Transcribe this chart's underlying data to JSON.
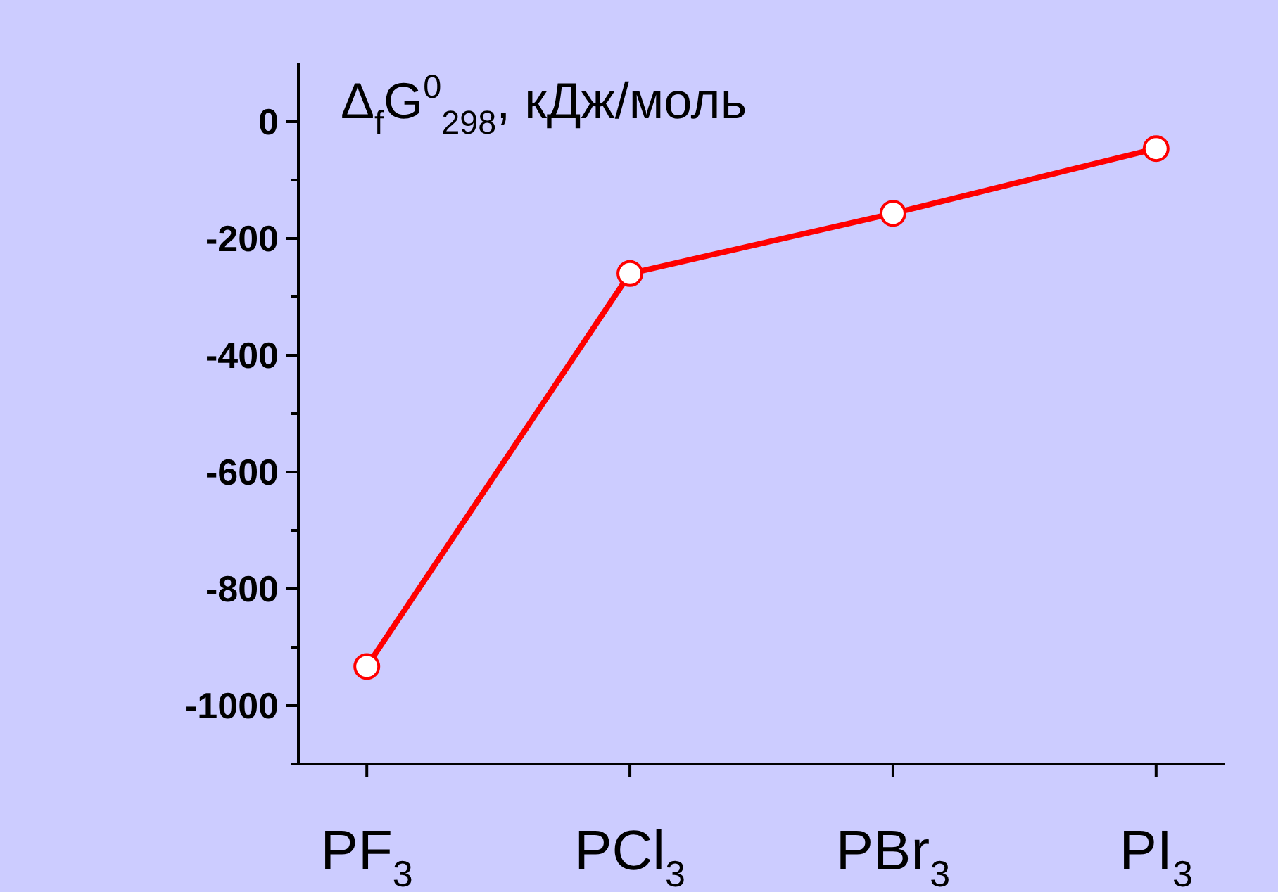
{
  "chart_data": {
    "type": "line",
    "ylabel": "Δ$_{f}$G$^{0}$$_{298}$, кДж/моль",
    "categories": [
      "PF$_{3}$",
      "PCl$_{3}$",
      "PBr$_{3}$",
      "PI$_{3}$"
    ],
    "series": [
      {
        "color": "#ff0000",
        "values": [
          -933,
          -260,
          -157,
          -46
        ]
      }
    ],
    "ylim": [
      -1100,
      100
    ],
    "yticks": [
      {
        "value": -1100,
        "label": null
      },
      -1000,
      {
        "value": -900,
        "label": null
      },
      -800,
      {
        "value": -700,
        "label": null
      },
      -600,
      {
        "value": -500,
        "label": null
      },
      -400,
      {
        "value": -300,
        "label": null
      },
      -200,
      {
        "value": -100,
        "label": null
      },
      0
    ],
    "marker": "circle",
    "line_style": "solid"
  }
}
